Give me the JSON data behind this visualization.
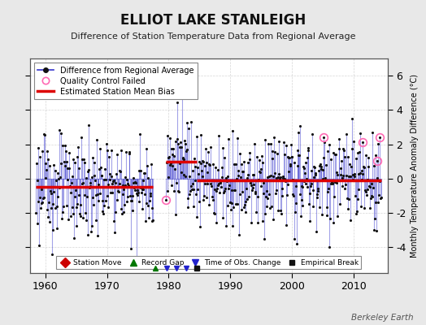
{
  "title": "ELLIOT LAKE STANLEIGH",
  "subtitle": "Difference of Station Temperature Data from Regional Average",
  "ylabel": "Monthly Temperature Anomaly Difference (°C)",
  "xlabel_years": [
    1960,
    1970,
    1980,
    1990,
    2000,
    2010
  ],
  "ylim": [
    -5.5,
    7.0
  ],
  "yticks": [
    -4,
    -2,
    0,
    2,
    4,
    6
  ],
  "xlim": [
    1957.5,
    2015.5
  ],
  "data_start_year": 1958.5,
  "data_end_year": 2014.5,
  "gap_start": 1977.5,
  "gap_end": 1979.5,
  "bias_segments": [
    {
      "x_start": 1958.5,
      "x_end": 1977.5,
      "bias": -0.5
    },
    {
      "x_start": 1979.5,
      "x_end": 1984.5,
      "bias": 1.0
    },
    {
      "x_start": 1984.5,
      "x_end": 2014.5,
      "bias": -0.1
    }
  ],
  "time_of_obs_changes": [
    1979.7,
    1981.3,
    1982.8
  ],
  "record_gaps": [
    1977.9
  ],
  "empirical_breaks": [
    1984.6
  ],
  "station_moves": [],
  "qc_failed": [
    2005.2,
    2011.5,
    2013.8,
    2014.2,
    1979.4
  ],
  "background_color": "#e8e8e8",
  "plot_bg_color": "#ffffff",
  "line_color": "#3333cc",
  "line_alpha": 0.45,
  "dot_color": "#111111",
  "bias_color": "#dd0000",
  "bias_linewidth": 2.5,
  "grid_color": "#999999",
  "grid_alpha": 0.4,
  "seed": 123
}
